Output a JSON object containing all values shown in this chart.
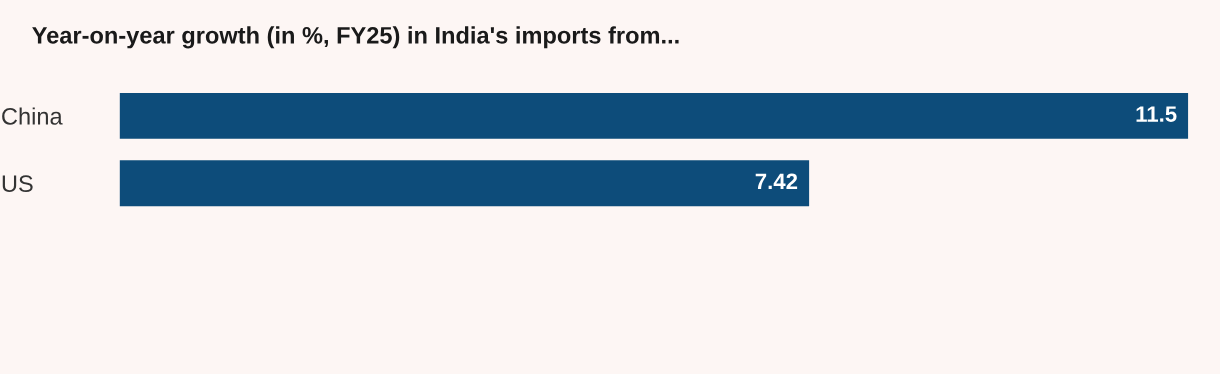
{
  "chart_data": {
    "type": "bar",
    "orientation": "horizontal",
    "title": "Year-on-year growth (in %, FY25) in India's imports from...",
    "categories": [
      "China",
      "US"
    ],
    "values": [
      11.5,
      7.42
    ],
    "color": "#0d4c7a",
    "data_labels": true,
    "grid": false,
    "legend": false
  }
}
